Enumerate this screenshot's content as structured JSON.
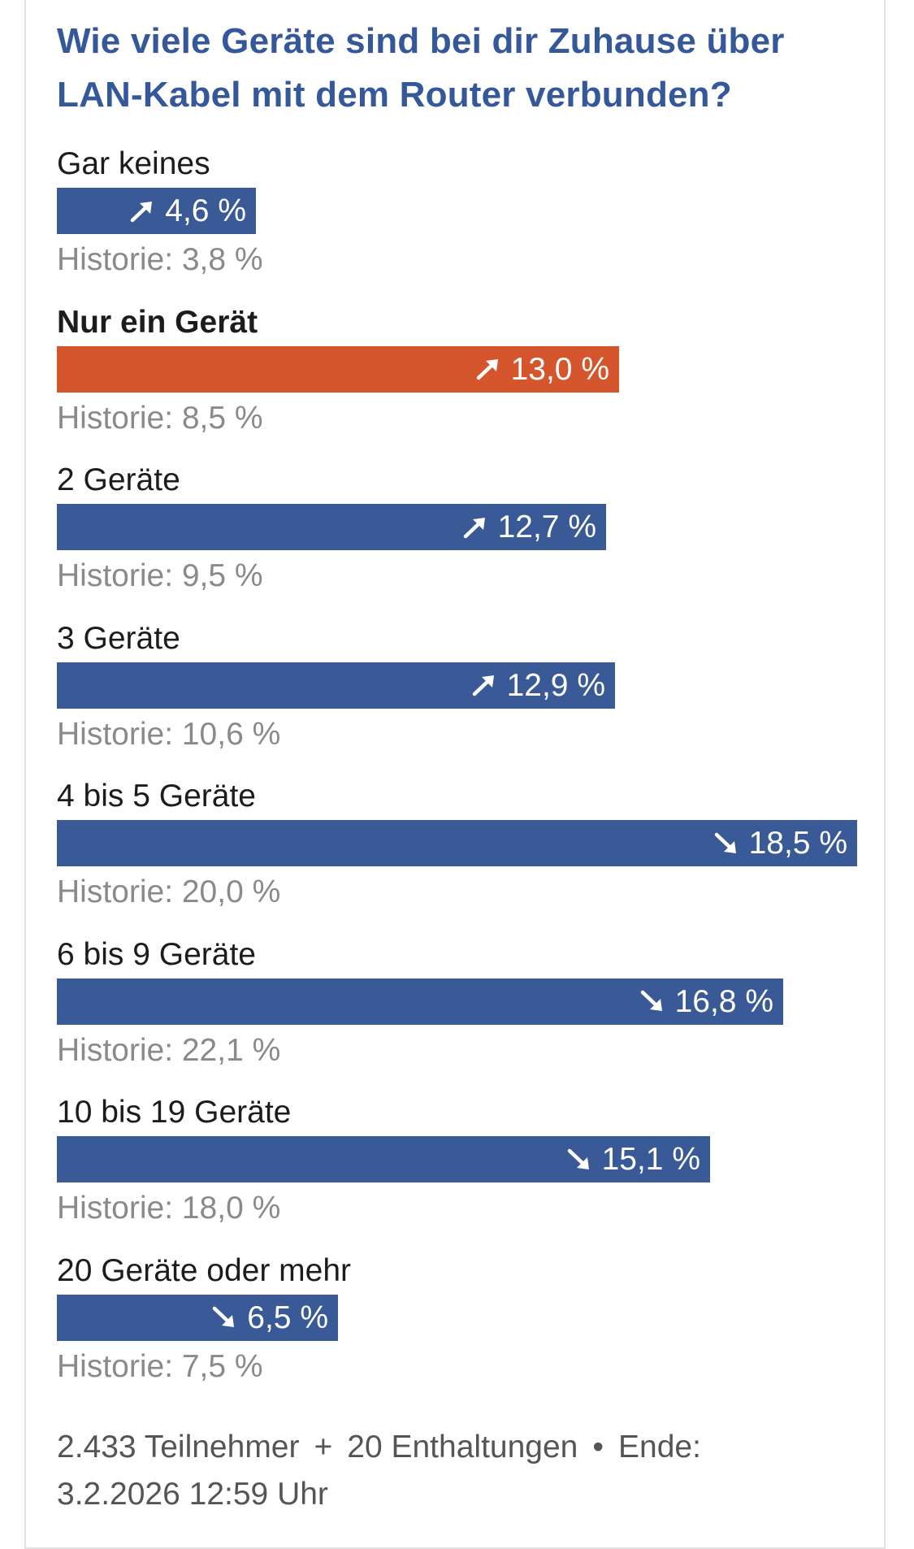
{
  "poll": {
    "title": "Wie viele Geräte sind bei dir Zuhause über LAN-Kabel mit dem Router verbunden?",
    "options": [
      {
        "label": "Gar keines",
        "percent_label": "4,6 %",
        "percent": 4.6,
        "trend": "up",
        "history": "Historie: 3,8 %",
        "selected": false
      },
      {
        "label": "Nur ein Gerät",
        "percent_label": "13,0 %",
        "percent": 13.0,
        "trend": "up",
        "history": "Historie: 8,5 %",
        "selected": true
      },
      {
        "label": "2 Geräte",
        "percent_label": "12,7 %",
        "percent": 12.7,
        "trend": "up",
        "history": "Historie: 9,5 %",
        "selected": false
      },
      {
        "label": "3 Geräte",
        "percent_label": "12,9 %",
        "percent": 12.9,
        "trend": "up",
        "history": "Historie: 10,6 %",
        "selected": false
      },
      {
        "label": "4 bis 5 Geräte",
        "percent_label": "18,5 %",
        "percent": 18.5,
        "trend": "down",
        "history": "Historie: 20,0 %",
        "selected": false
      },
      {
        "label": "6 bis 9 Geräte",
        "percent_label": "16,8 %",
        "percent": 16.8,
        "trend": "down",
        "history": "Historie: 22,1 %",
        "selected": false
      },
      {
        "label": "10 bis 19 Geräte",
        "percent_label": "15,1 %",
        "percent": 15.1,
        "trend": "down",
        "history": "Historie: 18,0 %",
        "selected": false
      },
      {
        "label": "20 Geräte oder mehr",
        "percent_label": "6,5 %",
        "percent": 6.5,
        "trend": "down",
        "history": "Historie: 7,5 %",
        "selected": false
      }
    ],
    "footer": {
      "participants": "2.433 Teilnehmer",
      "plus": "+",
      "abstentions": "20 Enthaltungen",
      "dot": "•",
      "end_label": "Ende:",
      "end_time": "3.2.2026 12:59 Uhr"
    }
  },
  "colors": {
    "title": "#34589a",
    "bar": "#3a5a97",
    "bar_selected": "#d5562c",
    "history_text": "#8a8a8a"
  },
  "icons": {
    "up": "arrow-up-right-icon",
    "down": "arrow-down-right-icon"
  }
}
